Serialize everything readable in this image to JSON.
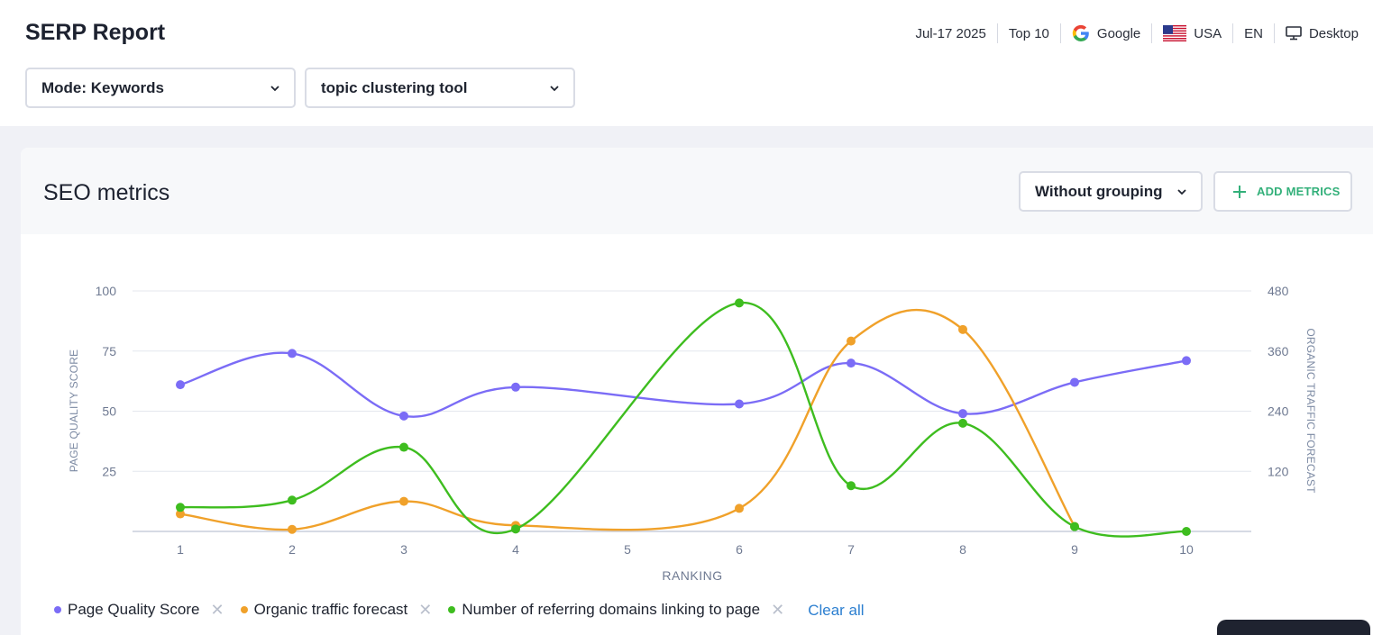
{
  "header": {
    "title": "SERP Report",
    "meta": {
      "date": "Jul-17 2025",
      "top": "Top 10",
      "engine": "Google",
      "country": "USA",
      "language": "EN",
      "device": "Desktop"
    },
    "mode_select": "Mode: Keywords",
    "keyword_select": "topic clustering tool"
  },
  "card": {
    "title": "SEO metrics",
    "grouping_label": "Without grouping",
    "add_metrics_label": "ADD METRICS"
  },
  "chart_data": {
    "type": "line",
    "x": [
      1,
      2,
      3,
      4,
      5,
      6,
      7,
      8,
      9,
      10
    ],
    "xlabel": "RANKING",
    "ylabel_left": "PAGE QUALITY SCORE",
    "ylabel_right": "ORGANIC TRAFFIC FORECAST",
    "yticks_left": [
      25,
      50,
      75,
      100
    ],
    "yticks_right": [
      120,
      240,
      360,
      480
    ],
    "ylim_left": [
      0,
      100
    ],
    "ylim_right": [
      0,
      480
    ],
    "grid": true,
    "series": [
      {
        "name": "Page Quality Score",
        "axis": "left",
        "color": "#7b6cf6",
        "x": [
          1,
          2,
          3,
          4,
          6,
          7,
          8,
          9,
          10
        ],
        "values": [
          61,
          74,
          48,
          60,
          53,
          70,
          49,
          62,
          71
        ]
      },
      {
        "name": "Organic traffic forecast",
        "axis": "right",
        "color": "#f0a12a",
        "x": [
          1,
          2,
          3,
          4,
          6,
          7,
          8,
          9
        ],
        "values": [
          35,
          4,
          60,
          12,
          46,
          380,
          403,
          10
        ]
      },
      {
        "name": "Number of referring domains linking to page",
        "axis": "left",
        "color": "#3ebd1f",
        "x": [
          1,
          2,
          3,
          4,
          6,
          7,
          8,
          9,
          10
        ],
        "values": [
          10,
          13,
          35,
          1,
          95,
          19,
          45,
          2,
          0
        ]
      }
    ]
  },
  "legend": {
    "clear_all": "Clear all"
  },
  "colors": {
    "accent_green": "#33b07a",
    "link_blue": "#2c7fd0"
  }
}
